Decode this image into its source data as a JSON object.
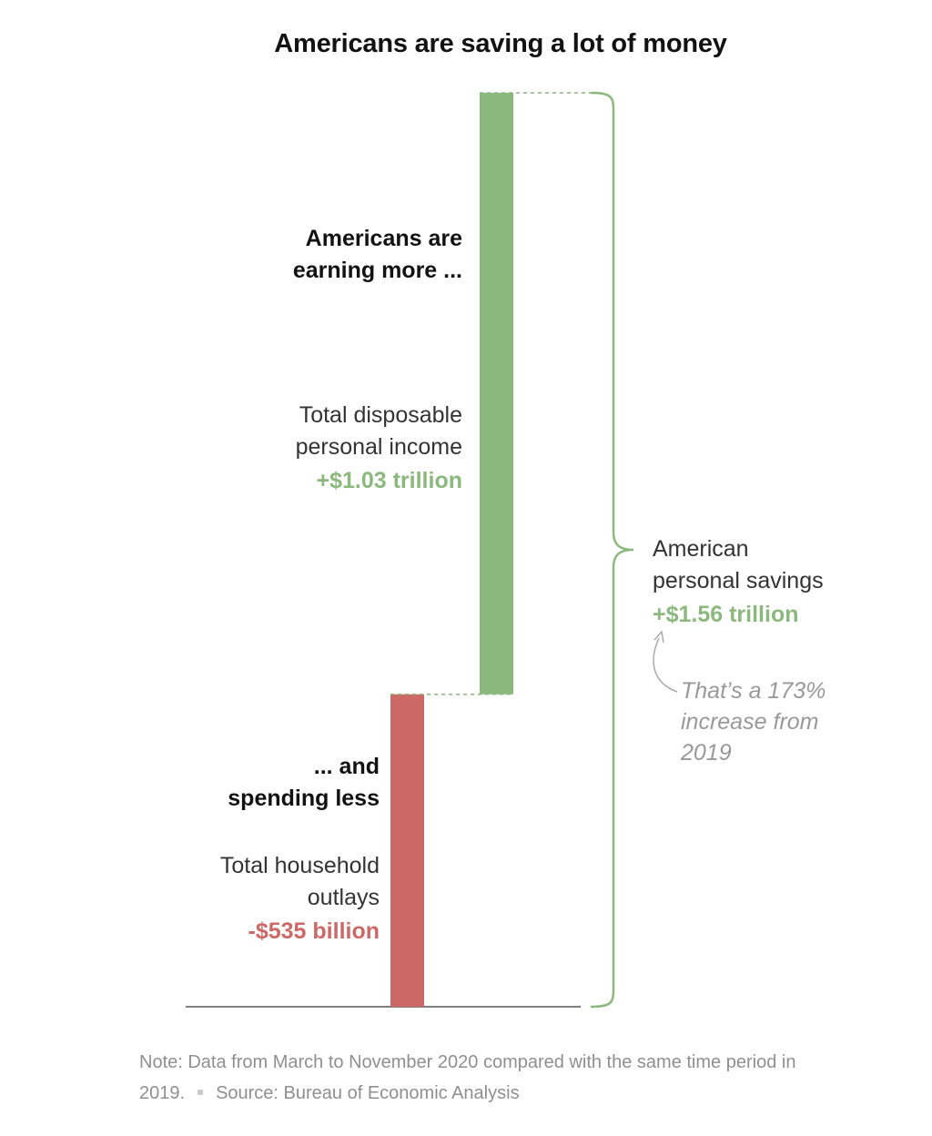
{
  "title": "Americans are saving a lot of money",
  "colors": {
    "income": "#8ab87d",
    "outlays": "#cc6966",
    "savings": "#8ab87d",
    "axis": "#555555",
    "annotation": "#999999"
  },
  "chart_data": {
    "type": "bar",
    "subtype": "waterfall",
    "units": "billions of US dollars",
    "categories": [
      "Total household outlays",
      "Total disposable personal income"
    ],
    "values": [
      535,
      1030
    ],
    "steps": [
      {
        "name": "Total household outlays",
        "change": -535,
        "start": 0,
        "end": 535,
        "value_label": "-$535 billion",
        "color": "#cc6966"
      },
      {
        "name": "Total disposable personal income",
        "change": 1030,
        "start": 535,
        "end": 1565,
        "value_label": "+$1.03 trillion",
        "color": "#8ab87d"
      }
    ],
    "total": {
      "name": "American personal savings",
      "value": 1560,
      "value_label": "+$1.56 trillion"
    },
    "ylim": [
      0,
      1565
    ],
    "title": "Americans are saving a lot of money",
    "grid": false,
    "legend": "none"
  },
  "labels": {
    "income_heading_line1": "Americans are",
    "income_heading_line2": "earning more ...",
    "income_desc_line1": "Total disposable",
    "income_desc_line2": "personal income",
    "income_value": "+$1.03 trillion",
    "outlays_heading_line1": "... and",
    "outlays_heading_line2": "spending less",
    "outlays_desc_line1": "Total household",
    "outlays_desc_line2": "outlays",
    "outlays_value": "-$535 billion",
    "savings_line1": "American",
    "savings_line2": "personal savings",
    "savings_value": "+$1.56 trillion",
    "annotation_line1": "That’s a 173%",
    "annotation_line2": "increase from",
    "annotation_line3": "2019"
  },
  "footer": {
    "note": "Note: Data from March to November 2020 compared with the same time period in 2019.",
    "source": "Source: Bureau of Economic Analysis"
  }
}
